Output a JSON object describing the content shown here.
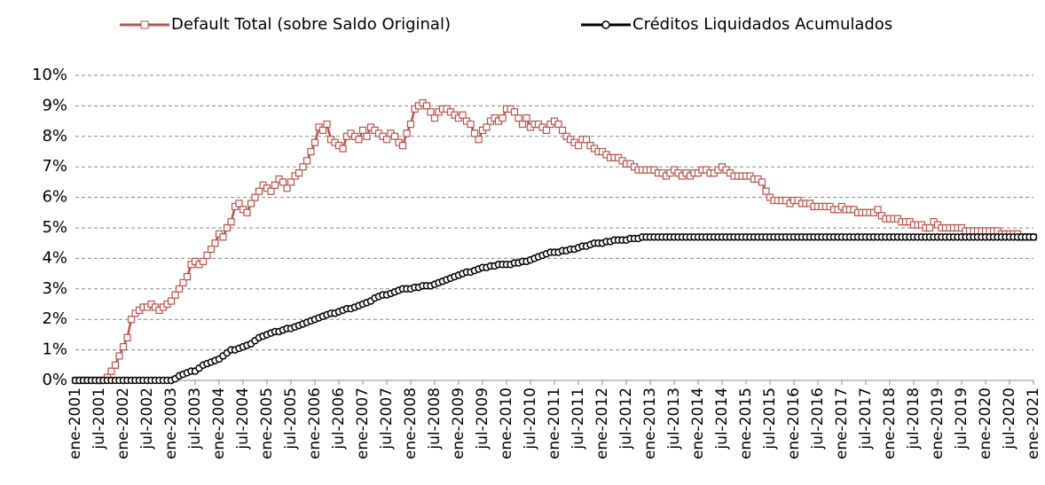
{
  "chart_data": {
    "type": "line",
    "categories": [
      "ene-2001",
      null,
      null,
      null,
      null,
      null,
      "jul-2001",
      null,
      null,
      null,
      null,
      null,
      "ene-2002",
      null,
      null,
      null,
      null,
      null,
      "jul-2002",
      null,
      null,
      null,
      null,
      null,
      "ene-2003",
      null,
      null,
      null,
      null,
      null,
      "jul-2003",
      null,
      null,
      null,
      null,
      null,
      "ene-2004",
      null,
      null,
      null,
      null,
      null,
      "jul-2004",
      null,
      null,
      null,
      null,
      null,
      "ene-2005",
      null,
      null,
      null,
      null,
      null,
      "jul-2005",
      null,
      null,
      null,
      null,
      null,
      "ene-2006",
      null,
      null,
      null,
      null,
      null,
      "jul-2006",
      null,
      null,
      null,
      null,
      null,
      "ene-2007",
      null,
      null,
      null,
      null,
      null,
      "jul-2007",
      null,
      null,
      null,
      null,
      null,
      "ene-2008",
      null,
      null,
      null,
      null,
      null,
      "jul-2008",
      null,
      null,
      null,
      null,
      null,
      "ene-2009",
      null,
      null,
      null,
      null,
      null,
      "jul-2009",
      null,
      null,
      null,
      null,
      null,
      "ene-2010",
      null,
      null,
      null,
      null,
      null,
      "jul-2010",
      null,
      null,
      null,
      null,
      null,
      "ene-2011",
      null,
      null,
      null,
      null,
      null,
      "jul-2011",
      null,
      null,
      null,
      null,
      null,
      "ene-2012",
      null,
      null,
      null,
      null,
      null,
      "jul-2012",
      null,
      null,
      null,
      null,
      null,
      "ene-2013",
      null,
      null,
      null,
      null,
      null,
      "jul-2013",
      null,
      null,
      null,
      null,
      null,
      "ene-2014",
      null,
      null,
      null,
      null,
      null,
      "jul-2014",
      null,
      null,
      null,
      null,
      null,
      "ene-2015",
      null,
      null,
      null,
      null,
      null,
      "jul-2015",
      null,
      null,
      null,
      null,
      null,
      "ene-2016",
      null,
      null,
      null,
      null,
      null,
      "jul-2016",
      null,
      null,
      null,
      null,
      null,
      "ene-2017",
      null,
      null,
      null,
      null,
      null,
      "jul-2017",
      null,
      null,
      null,
      null,
      null,
      "ene-2018",
      null,
      null,
      null,
      null,
      null,
      "jul-2018",
      null,
      null,
      null,
      null,
      null,
      "ene-2019",
      null,
      null,
      null,
      null,
      null,
      "jul-2019",
      null,
      null,
      null,
      null,
      null,
      "ene-2020",
      null,
      null,
      null,
      null,
      null,
      "jul-2020",
      null,
      null,
      null,
      null,
      null,
      "ene-2021"
    ],
    "series": [
      {
        "name": "Default Total (sobre Saldo Original)",
        "color": "#c0504d",
        "marker": "square",
        "values": [
          0,
          0,
          0,
          0,
          0,
          0,
          0,
          0,
          0.1,
          0.3,
          0.5,
          0.8,
          1.1,
          1.4,
          2.0,
          2.2,
          2.3,
          2.4,
          2.4,
          2.5,
          2.4,
          2.3,
          2.4,
          2.5,
          2.6,
          2.8,
          3.0,
          3.2,
          3.4,
          3.8,
          3.9,
          3.8,
          3.9,
          4.1,
          4.3,
          4.5,
          4.8,
          4.7,
          5.0,
          5.2,
          5.7,
          5.8,
          5.6,
          5.5,
          5.8,
          6.0,
          6.2,
          6.4,
          6.3,
          6.2,
          6.4,
          6.6,
          6.5,
          6.3,
          6.5,
          6.7,
          6.8,
          7.0,
          7.2,
          7.5,
          7.8,
          8.3,
          8.2,
          8.4,
          7.9,
          7.8,
          7.7,
          7.6,
          8.0,
          8.1,
          8.0,
          7.9,
          8.2,
          8.0,
          8.3,
          8.2,
          8.1,
          8.0,
          7.9,
          8.1,
          8.0,
          7.8,
          7.7,
          8.1,
          8.4,
          8.9,
          9.0,
          9.1,
          9.0,
          8.8,
          8.6,
          8.8,
          8.9,
          8.9,
          8.8,
          8.7,
          8.6,
          8.7,
          8.5,
          8.4,
          8.1,
          7.9,
          8.2,
          8.3,
          8.5,
          8.6,
          8.5,
          8.6,
          8.9,
          8.9,
          8.8,
          8.6,
          8.4,
          8.6,
          8.3,
          8.4,
          8.4,
          8.3,
          8.2,
          8.4,
          8.5,
          8.4,
          8.2,
          8.0,
          7.9,
          7.8,
          7.7,
          7.9,
          7.9,
          7.7,
          7.6,
          7.5,
          7.5,
          7.4,
          7.3,
          7.3,
          7.3,
          7.2,
          7.1,
          7.1,
          7.0,
          6.9,
          6.9,
          6.9,
          6.9,
          6.9,
          6.8,
          6.8,
          6.7,
          6.8,
          6.9,
          6.8,
          6.7,
          6.8,
          6.7,
          6.8,
          6.8,
          6.9,
          6.9,
          6.8,
          6.8,
          6.9,
          7.0,
          6.9,
          6.8,
          6.7,
          6.7,
          6.7,
          6.7,
          6.7,
          6.6,
          6.6,
          6.5,
          6.2,
          6.0,
          5.9,
          5.9,
          5.9,
          5.9,
          5.8,
          5.9,
          5.9,
          5.8,
          5.8,
          5.8,
          5.7,
          5.7,
          5.7,
          5.7,
          5.7,
          5.6,
          5.6,
          5.7,
          5.6,
          5.6,
          5.6,
          5.5,
          5.5,
          5.5,
          5.5,
          5.5,
          5.6,
          5.4,
          5.3,
          5.3,
          5.3,
          5.3,
          5.2,
          5.2,
          5.2,
          5.1,
          5.1,
          5.1,
          5.0,
          5.0,
          5.2,
          5.1,
          5.0,
          5.0,
          5.0,
          5.0,
          5.0,
          5.0,
          4.9,
          4.9,
          4.9,
          4.9,
          4.9,
          4.9,
          4.9,
          4.9,
          4.9,
          4.8,
          4.8,
          4.8,
          4.8,
          4.8,
          4.7,
          4.7,
          4.7,
          4.7
        ]
      },
      {
        "name": "Créditos Liquidados Acumulados",
        "color": "#000000",
        "marker": "circle",
        "values": [
          0,
          0,
          0,
          0,
          0,
          0,
          0,
          0,
          0,
          0,
          0,
          0,
          0,
          0,
          0,
          0,
          0,
          0,
          0,
          0,
          0,
          0,
          0,
          0,
          0,
          0.05,
          0.15,
          0.2,
          0.25,
          0.3,
          0.3,
          0.4,
          0.5,
          0.55,
          0.6,
          0.65,
          0.7,
          0.8,
          0.9,
          1.0,
          1.0,
          1.05,
          1.1,
          1.15,
          1.2,
          1.3,
          1.4,
          1.45,
          1.5,
          1.55,
          1.6,
          1.6,
          1.65,
          1.7,
          1.7,
          1.75,
          1.8,
          1.85,
          1.9,
          1.95,
          2.0,
          2.05,
          2.1,
          2.15,
          2.2,
          2.2,
          2.25,
          2.3,
          2.35,
          2.35,
          2.4,
          2.45,
          2.5,
          2.55,
          2.6,
          2.7,
          2.75,
          2.8,
          2.8,
          2.85,
          2.9,
          2.95,
          3.0,
          3.0,
          3.0,
          3.05,
          3.05,
          3.1,
          3.1,
          3.1,
          3.15,
          3.2,
          3.25,
          3.3,
          3.35,
          3.4,
          3.45,
          3.5,
          3.55,
          3.55,
          3.6,
          3.65,
          3.7,
          3.7,
          3.75,
          3.75,
          3.8,
          3.8,
          3.8,
          3.8,
          3.85,
          3.85,
          3.9,
          3.9,
          3.95,
          4.0,
          4.05,
          4.1,
          4.15,
          4.2,
          4.2,
          4.2,
          4.25,
          4.25,
          4.3,
          4.3,
          4.35,
          4.4,
          4.4,
          4.45,
          4.5,
          4.5,
          4.5,
          4.55,
          4.55,
          4.6,
          4.6,
          4.6,
          4.6,
          4.65,
          4.65,
          4.65,
          4.7,
          4.7,
          4.7,
          4.7,
          4.7,
          4.7,
          4.7,
          4.7,
          4.7,
          4.7,
          4.7,
          4.7,
          4.7,
          4.7,
          4.7,
          4.7,
          4.7,
          4.7,
          4.7,
          4.7,
          4.7,
          4.7,
          4.7,
          4.7,
          4.7,
          4.7,
          4.7,
          4.7,
          4.7,
          4.7,
          4.7,
          4.7,
          4.7,
          4.7,
          4.7,
          4.7,
          4.7,
          4.7,
          4.7,
          4.7,
          4.7,
          4.7,
          4.7,
          4.7,
          4.7,
          4.7,
          4.7,
          4.7,
          4.7,
          4.7,
          4.7,
          4.7,
          4.7,
          4.7,
          4.7,
          4.7,
          4.7,
          4.7,
          4.7,
          4.7,
          4.7,
          4.7,
          4.7,
          4.7,
          4.7,
          4.7,
          4.7,
          4.7,
          4.7,
          4.7,
          4.7,
          4.7,
          4.7,
          4.7,
          4.7,
          4.7,
          4.7,
          4.7,
          4.7,
          4.7,
          4.7,
          4.7,
          4.7,
          4.7,
          4.7,
          4.7,
          4.7,
          4.7,
          4.7,
          4.7,
          4.7,
          4.7,
          4.7,
          4.7,
          4.7,
          4.7,
          4.7,
          4.7,
          4.7
        ]
      }
    ],
    "ylim": [
      0,
      10
    ],
    "yticks": [
      {
        "value": 0,
        "label": "0%"
      },
      {
        "value": 1,
        "label": "1%"
      },
      {
        "value": 2,
        "label": "2%"
      },
      {
        "value": 3,
        "label": "3%"
      },
      {
        "value": 4,
        "label": "4%"
      },
      {
        "value": 5,
        "label": "5%"
      },
      {
        "value": 6,
        "label": "6%"
      },
      {
        "value": 7,
        "label": "7%"
      },
      {
        "value": 8,
        "label": "8%"
      },
      {
        "value": 9,
        "label": "9%"
      },
      {
        "value": 10,
        "label": "10%"
      }
    ],
    "grid": true,
    "legend": "top"
  }
}
